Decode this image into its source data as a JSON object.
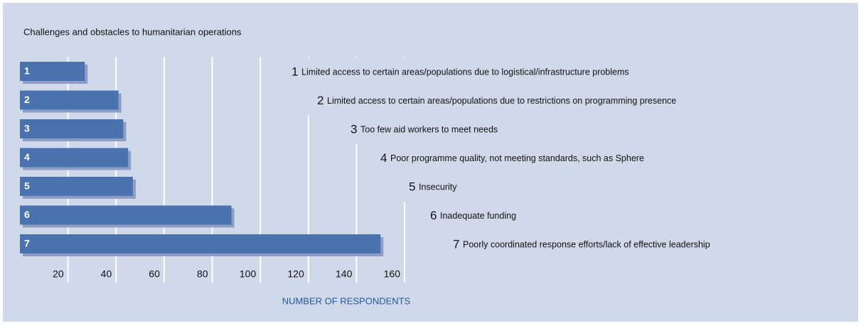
{
  "chart_data": {
    "type": "barh",
    "title": "Challenges and obstacles to humanitarian operations",
    "categories": [
      "1",
      "2",
      "3",
      "4",
      "5",
      "6",
      "7"
    ],
    "descriptions": [
      "Limited access to certain areas/populations due to logistical/infrastructure problems",
      "Limited access to certain areas/populations due to restrictions on programming presence",
      "Too few aid workers to meet needs",
      "Poor programme quality, not meeting standards, such as Sphere",
      "Insecurity",
      "Inadequate funding",
      "Poorly coordinated response efforts/lack of effective leadership"
    ],
    "values": [
      27,
      41,
      43,
      45,
      47,
      88,
      150
    ],
    "color": "#4a72ae",
    "xlabel": "NUMBER OF RESPONDENTS",
    "xlim": [
      0,
      160
    ],
    "xticks": [
      20,
      40,
      60,
      80,
      100,
      120,
      140,
      160
    ],
    "grid": true
  }
}
